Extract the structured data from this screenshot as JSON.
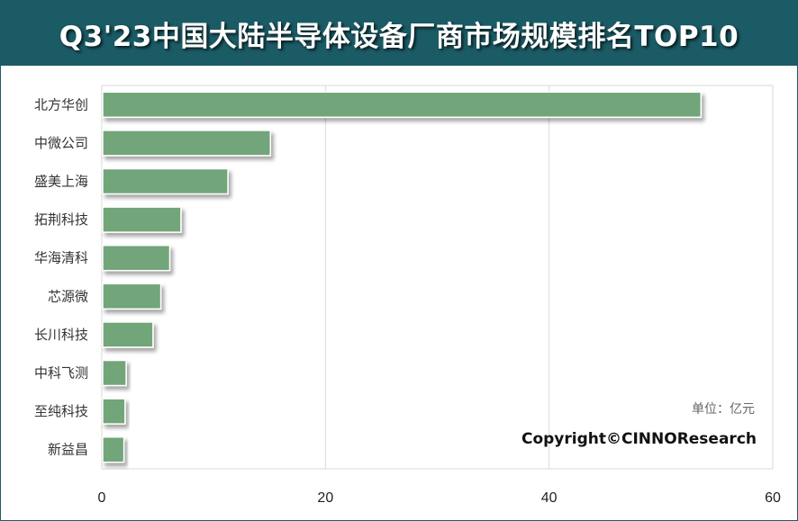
{
  "title": "Q3'23中国大陆半导体设备厂商市场规模排名TOP10",
  "unit_note": "单位：亿元",
  "copyright": "Copyright©CINNOResearch",
  "colors": {
    "header_bg": "#1b5b65",
    "bar_fill": "#72a57a",
    "grid": "#d9d9d9"
  },
  "chart_data": {
    "type": "bar",
    "orientation": "horizontal",
    "categories": [
      "北方华创",
      "中微公司",
      "盛美上海",
      "拓荆科技",
      "华海清科",
      "芯源微",
      "长川科技",
      "中科飞测",
      "至纯科技",
      "新益昌"
    ],
    "values": [
      53.5,
      15.0,
      11.2,
      7.0,
      6.0,
      5.2,
      4.5,
      2.1,
      2.0,
      1.9
    ],
    "xlim": [
      0,
      60
    ],
    "xticks": [
      0,
      20,
      40,
      60
    ],
    "grid": true,
    "legend": "none"
  }
}
